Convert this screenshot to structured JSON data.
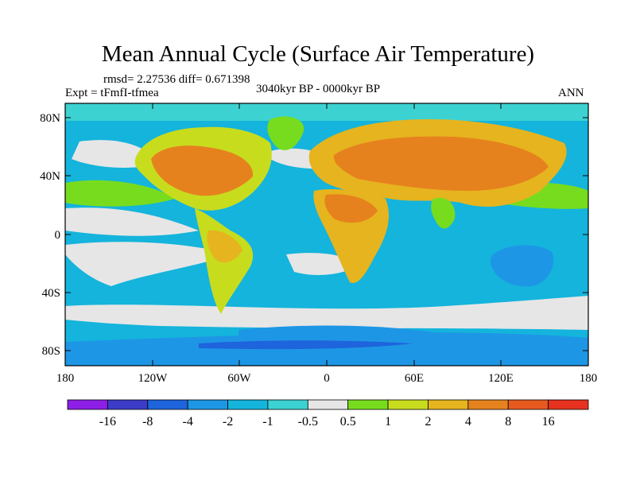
{
  "title": "Mean Annual Cycle (Surface Air Temperature)",
  "stats": "rmsd= 2.27536 diff= 0.671398",
  "experiment": "Expt = tFmfI-tfmea",
  "period": "3040kyr BP - 0000kyr BP",
  "season": "ANN",
  "y_ticks": [
    "80N",
    "40N",
    "0",
    "40S",
    "80S"
  ],
  "x_ticks": [
    "180",
    "120W",
    "60W",
    "0",
    "60E",
    "120E",
    "180"
  ],
  "colorbar": {
    "labels": [
      "-16",
      "-8",
      "-4",
      "-2",
      "-1",
      "-0.5",
      "0.5",
      "1",
      "2",
      "4",
      "8",
      "16"
    ],
    "colors": [
      "#8c1ee6",
      "#3c3cc8",
      "#1e64dc",
      "#1e96e6",
      "#14b4dc",
      "#3cd2d2",
      "#e6e6e6",
      "#78dc1e",
      "#c8dc1e",
      "#e6b41e",
      "#e6821e",
      "#e65a1e",
      "#e6321e"
    ]
  },
  "palette": {
    "ocean_cool": "#14b4dc",
    "ocean_light": "#3cd2d2",
    "ocean_deep": "#1e96e6",
    "neutral": "#e6e6e6",
    "warm_green": "#78dc1e",
    "warm_yellow": "#c8dc1e",
    "warm_gold": "#e6b41e",
    "warm_orange": "#e6821e",
    "antarctic_blue": "#1e64dc"
  }
}
